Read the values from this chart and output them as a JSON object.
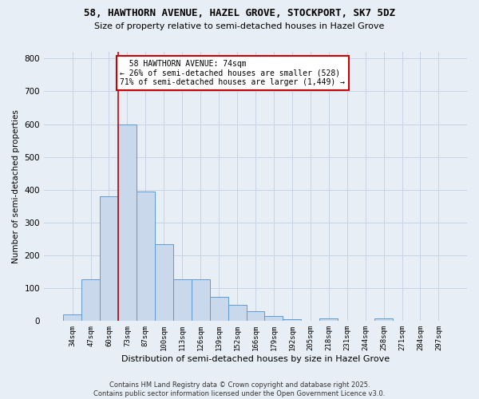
{
  "title_line1": "58, HAWTHORN AVENUE, HAZEL GROVE, STOCKPORT, SK7 5DZ",
  "title_line2": "Size of property relative to semi-detached houses in Hazel Grove",
  "xlabel": "Distribution of semi-detached houses by size in Hazel Grove",
  "ylabel": "Number of semi-detached properties",
  "footer": "Contains HM Land Registry data © Crown copyright and database right 2025.\nContains public sector information licensed under the Open Government Licence v3.0.",
  "bin_labels": [
    "34sqm",
    "47sqm",
    "60sqm",
    "73sqm",
    "87sqm",
    "100sqm",
    "113sqm",
    "126sqm",
    "139sqm",
    "152sqm",
    "166sqm",
    "179sqm",
    "192sqm",
    "205sqm",
    "218sqm",
    "231sqm",
    "244sqm",
    "258sqm",
    "271sqm",
    "284sqm",
    "297sqm"
  ],
  "bar_heights": [
    20,
    128,
    380,
    600,
    395,
    235,
    128,
    128,
    73,
    50,
    30,
    15,
    5,
    0,
    8,
    0,
    0,
    7,
    0,
    0,
    0
  ],
  "bar_color": "#c9d9eb",
  "bar_edge_color": "#5b9bd5",
  "grid_color": "#c8d4e3",
  "background_color": "#e8eef5",
  "red_line_bin_index": 3,
  "property_size": "74sqm",
  "property_name": "58 HAWTHORN AVENUE",
  "pct_smaller": 26,
  "count_smaller": 528,
  "pct_larger": 71,
  "count_larger": 1449,
  "annotation_box_color": "#ffffff",
  "annotation_box_edge": "#cc0000",
  "ylim": [
    0,
    820
  ],
  "yticks": [
    0,
    100,
    200,
    300,
    400,
    500,
    600,
    700,
    800
  ]
}
